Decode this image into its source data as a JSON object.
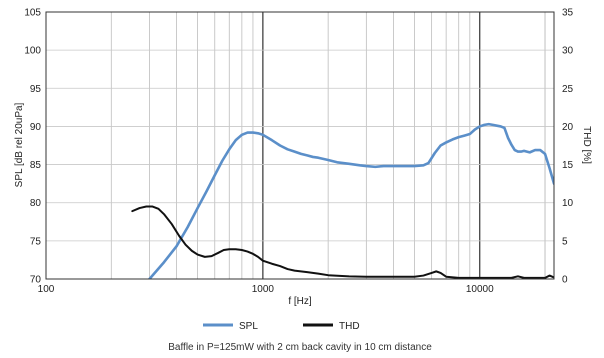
{
  "chart_data": {
    "type": "line",
    "xscale": "log",
    "xlim": [
      100,
      22000
    ],
    "ylim_left": [
      70,
      105
    ],
    "ylim_right": [
      0,
      35
    ],
    "xticks": [
      {
        "value": 100,
        "label": "100"
      },
      {
        "value": 1000,
        "label": "1000"
      },
      {
        "value": 10000,
        "label": "10000"
      }
    ],
    "yticks_left": [
      "70",
      "75",
      "80",
      "85",
      "90",
      "95",
      "100",
      "105"
    ],
    "yticks_right": [
      "0",
      "5",
      "10",
      "15",
      "20",
      "25",
      "30",
      "35"
    ],
    "emphasized_vlines": [
      1000,
      10000
    ],
    "xlabel": "f [Hz]",
    "ylabel_left": "SPL [dB rel 20uPa]",
    "ylabel_right": "THD [%]",
    "caption": "Baffle in P=125mW with 2 cm back cavity in 10 cm distance",
    "grid": true,
    "legend_position": "bottom-center",
    "series": [
      {
        "name": "SPL",
        "axis": "left",
        "color": "#5b8fc9",
        "points": [
          [
            300,
            70
          ],
          [
            350,
            72.2
          ],
          [
            400,
            74.3
          ],
          [
            450,
            76.8
          ],
          [
            500,
            79.3
          ],
          [
            550,
            81.5
          ],
          [
            600,
            83.6
          ],
          [
            650,
            85.5
          ],
          [
            700,
            87
          ],
          [
            750,
            88.2
          ],
          [
            800,
            88.9
          ],
          [
            850,
            89.2
          ],
          [
            900,
            89.2
          ],
          [
            950,
            89.1
          ],
          [
            1000,
            88.9
          ],
          [
            1100,
            88.2
          ],
          [
            1200,
            87.5
          ],
          [
            1300,
            87
          ],
          [
            1400,
            86.7
          ],
          [
            1500,
            86.4
          ],
          [
            1600,
            86.2
          ],
          [
            1700,
            86
          ],
          [
            1800,
            85.9
          ],
          [
            2000,
            85.6
          ],
          [
            2200,
            85.3
          ],
          [
            2500,
            85.1
          ],
          [
            2800,
            84.9
          ],
          [
            3000,
            84.8
          ],
          [
            3300,
            84.7
          ],
          [
            3600,
            84.8
          ],
          [
            4000,
            84.8
          ],
          [
            4500,
            84.8
          ],
          [
            5000,
            84.8
          ],
          [
            5500,
            84.9
          ],
          [
            5800,
            85.2
          ],
          [
            6200,
            86.5
          ],
          [
            6600,
            87.5
          ],
          [
            7000,
            87.9
          ],
          [
            7500,
            88.3
          ],
          [
            8000,
            88.6
          ],
          [
            8500,
            88.8
          ],
          [
            9000,
            89
          ],
          [
            9500,
            89.6
          ],
          [
            10000,
            90
          ],
          [
            10500,
            90.2
          ],
          [
            11000,
            90.3
          ],
          [
            11500,
            90.2
          ],
          [
            12000,
            90.1
          ],
          [
            12500,
            90
          ],
          [
            13000,
            89.8
          ],
          [
            13500,
            88.5
          ],
          [
            14000,
            87.6
          ],
          [
            14500,
            86.9
          ],
          [
            15000,
            86.7
          ],
          [
            15500,
            86.7
          ],
          [
            16000,
            86.8
          ],
          [
            17000,
            86.6
          ],
          [
            18000,
            86.9
          ],
          [
            19000,
            86.9
          ],
          [
            20000,
            86.4
          ],
          [
            21000,
            84.5
          ],
          [
            22000,
            82.5
          ]
        ]
      },
      {
        "name": "THD",
        "axis": "right",
        "color": "#111111",
        "points": [
          [
            250,
            8.9
          ],
          [
            270,
            9.3
          ],
          [
            290,
            9.5
          ],
          [
            310,
            9.5
          ],
          [
            330,
            9.2
          ],
          [
            350,
            8.5
          ],
          [
            380,
            7.2
          ],
          [
            410,
            5.7
          ],
          [
            440,
            4.5
          ],
          [
            470,
            3.7
          ],
          [
            500,
            3.2
          ],
          [
            540,
            2.9
          ],
          [
            580,
            3
          ],
          [
            620,
            3.4
          ],
          [
            660,
            3.8
          ],
          [
            700,
            3.9
          ],
          [
            750,
            3.9
          ],
          [
            800,
            3.8
          ],
          [
            850,
            3.6
          ],
          [
            900,
            3.3
          ],
          [
            950,
            2.9
          ],
          [
            1000,
            2.4
          ],
          [
            1100,
            2
          ],
          [
            1200,
            1.7
          ],
          [
            1300,
            1.3
          ],
          [
            1400,
            1.1
          ],
          [
            1600,
            0.9
          ],
          [
            1800,
            0.7
          ],
          [
            2000,
            0.5
          ],
          [
            2500,
            0.35
          ],
          [
            3000,
            0.3
          ],
          [
            3500,
            0.3
          ],
          [
            4000,
            0.3
          ],
          [
            4500,
            0.3
          ],
          [
            5000,
            0.3
          ],
          [
            5500,
            0.45
          ],
          [
            6000,
            0.8
          ],
          [
            6300,
            1
          ],
          [
            6600,
            0.8
          ],
          [
            7000,
            0.3
          ],
          [
            8000,
            0.15
          ],
          [
            10000,
            0.15
          ],
          [
            12000,
            0.15
          ],
          [
            14000,
            0.15
          ],
          [
            15000,
            0.35
          ],
          [
            16000,
            0.15
          ],
          [
            18000,
            0.15
          ],
          [
            20000,
            0.15
          ],
          [
            21000,
            0.45
          ],
          [
            22000,
            0.2
          ]
        ]
      }
    ]
  }
}
